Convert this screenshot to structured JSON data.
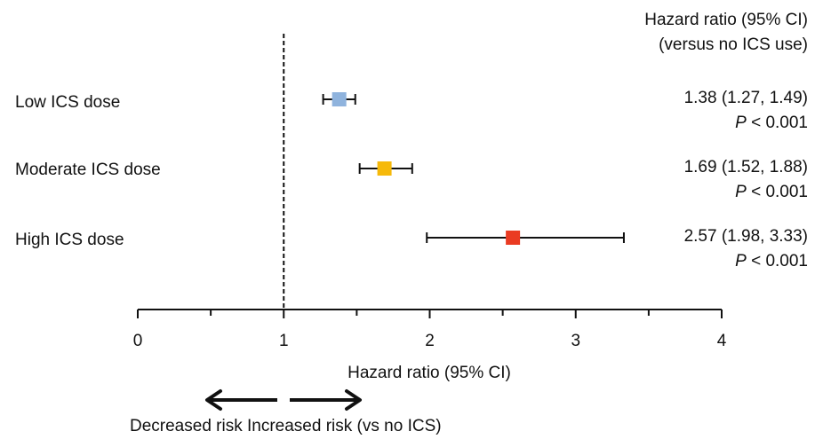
{
  "header": {
    "line1": "Hazard ratio (95% CI)",
    "line2": "(versus no ICS use)"
  },
  "chart_data": {
    "type": "forest",
    "reference_line": 1,
    "xlim": [
      0,
      4
    ],
    "ticks": [
      "0",
      "1",
      "2",
      "3",
      "4"
    ],
    "xlabel": "Hazard ratio (95% CI)",
    "rows": [
      {
        "label": "Low ICS dose",
        "hr": 1.38,
        "lower": 1.27,
        "upper": 1.49,
        "color": "#8fb3dd",
        "hr_text": "1.38",
        "ci_text": "(1.27, 1.49)",
        "p_symbol": "P",
        "p_text": "< 0.001"
      },
      {
        "label": "Moderate ICS dose",
        "hr": 1.69,
        "lower": 1.52,
        "upper": 1.88,
        "color": "#f6b90a",
        "hr_text": "1.69",
        "ci_text": "(1.52, 1.88)",
        "p_symbol": "P",
        "p_text": "< 0.001"
      },
      {
        "label": "High ICS dose",
        "hr": 2.57,
        "lower": 1.98,
        "upper": 3.33,
        "color": "#ea3b22",
        "hr_text": "2.57",
        "ci_text": "(1.98, 3.33)",
        "p_symbol": "P",
        "p_text": "< 0.001"
      }
    ],
    "direction": {
      "left": "Decreased risk",
      "right": "Increased risk (vs no ICS)"
    }
  }
}
